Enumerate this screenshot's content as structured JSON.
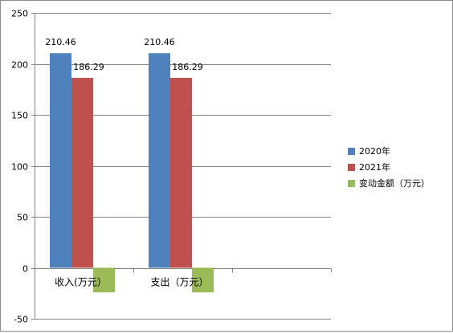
{
  "chart_data": {
    "type": "bar",
    "categories": [
      "收入(万元）",
      "支出（万元）",
      ""
    ],
    "series": [
      {
        "name": "2020年",
        "color": "#4F81BD",
        "values": [
          210.46,
          210.46,
          null
        ]
      },
      {
        "name": "2021年",
        "color": "#C0504D",
        "values": [
          186.29,
          186.29,
          null
        ]
      },
      {
        "name": "变动金额（万元）",
        "color": "#9BBB59",
        "values": [
          -24.17,
          -24.17,
          null
        ]
      }
    ],
    "data_labels": [
      [
        "210.46",
        "210.46",
        ""
      ],
      [
        "186.29",
        "186.29",
        ""
      ],
      [
        "",
        "",
        ""
      ]
    ],
    "yticks": [
      -50,
      0,
      50,
      100,
      150,
      200,
      250
    ],
    "ytick_labels": [
      "-50",
      "0",
      "50",
      "100",
      "150",
      "200",
      "250"
    ],
    "ylim": [
      -50,
      250
    ],
    "grid": true,
    "legend_position": "right",
    "title": "",
    "xlabel": "",
    "ylabel": ""
  }
}
